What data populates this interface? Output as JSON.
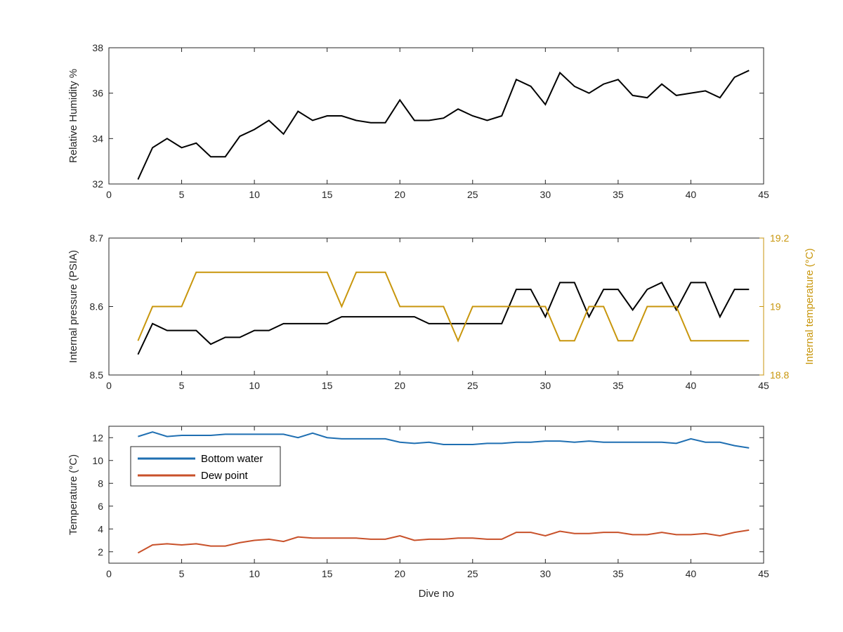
{
  "chart_data": [
    {
      "type": "line",
      "ylabel": "Relative Humidity %",
      "xlim": [
        0,
        45
      ],
      "ylim": [
        32,
        38
      ],
      "xticks": [
        "0",
        "5",
        "10",
        "15",
        "20",
        "25",
        "30",
        "35",
        "40",
        "45"
      ],
      "yticks": [
        "32",
        "34",
        "36",
        "38"
      ],
      "series": [
        {
          "color": "#000000",
          "x": [
            2,
            3,
            4,
            5,
            6,
            7,
            8,
            9,
            10,
            11,
            12,
            13,
            14,
            15,
            16,
            17,
            18,
            19,
            20,
            21,
            22,
            23,
            24,
            25,
            26,
            27,
            28,
            29,
            30,
            31,
            32,
            33,
            34,
            35,
            36,
            37,
            38,
            39,
            40,
            41,
            42,
            43,
            44
          ],
          "y": [
            32.2,
            33.6,
            34.0,
            33.6,
            33.8,
            33.2,
            33.2,
            34.1,
            34.4,
            34.8,
            34.2,
            35.2,
            34.8,
            35.0,
            35.0,
            34.8,
            34.7,
            34.7,
            35.7,
            34.8,
            34.8,
            34.9,
            35.3,
            35.0,
            34.8,
            35.0,
            36.6,
            36.3,
            35.5,
            36.9,
            36.3,
            36.0,
            36.4,
            36.6,
            35.9,
            35.8,
            36.4,
            35.9,
            36.0,
            36.1,
            35.8,
            36.7,
            37.0
          ]
        }
      ]
    },
    {
      "type": "line",
      "ylabel": "Internal pressure (PSIA)",
      "y2label": "Internal temperature (°C)",
      "xlim": [
        0,
        45
      ],
      "ylim": [
        8.5,
        8.7
      ],
      "y2lim": [
        18.8,
        19.2
      ],
      "xticks": [
        "0",
        "5",
        "10",
        "15",
        "20",
        "25",
        "30",
        "35",
        "40",
        "45"
      ],
      "yticks": [
        "8.5",
        "8.6",
        "8.7"
      ],
      "y2ticks": [
        "18.8",
        "19",
        "19.2"
      ],
      "y2color": "#c8960c",
      "series": [
        {
          "axis": "left",
          "color": "#000000",
          "x": [
            2,
            3,
            4,
            5,
            6,
            7,
            8,
            9,
            10,
            11,
            12,
            13,
            14,
            15,
            16,
            17,
            18,
            19,
            20,
            21,
            22,
            23,
            24,
            25,
            26,
            27,
            28,
            29,
            30,
            31,
            32,
            33,
            34,
            35,
            36,
            37,
            38,
            39,
            40,
            41,
            42,
            43,
            44
          ],
          "y": [
            8.53,
            8.575,
            8.565,
            8.565,
            8.565,
            8.545,
            8.555,
            8.555,
            8.565,
            8.565,
            8.575,
            8.575,
            8.575,
            8.575,
            8.585,
            8.585,
            8.585,
            8.585,
            8.585,
            8.585,
            8.575,
            8.575,
            8.575,
            8.575,
            8.575,
            8.575,
            8.625,
            8.625,
            8.585,
            8.635,
            8.635,
            8.585,
            8.625,
            8.625,
            8.595,
            8.625,
            8.635,
            8.595,
            8.635,
            8.635,
            8.585,
            8.625,
            8.625
          ]
        },
        {
          "axis": "right",
          "color": "#c8960c",
          "x": [
            2,
            3,
            4,
            5,
            6,
            7,
            8,
            9,
            10,
            11,
            12,
            13,
            14,
            15,
            16,
            17,
            18,
            19,
            20,
            21,
            22,
            23,
            24,
            25,
            26,
            27,
            28,
            29,
            30,
            31,
            32,
            33,
            34,
            35,
            36,
            37,
            38,
            39,
            40,
            41,
            42,
            43,
            44
          ],
          "y": [
            18.9,
            19.0,
            19.0,
            19.0,
            19.1,
            19.1,
            19.1,
            19.1,
            19.1,
            19.1,
            19.1,
            19.1,
            19.1,
            19.1,
            19.0,
            19.1,
            19.1,
            19.1,
            19.0,
            19.0,
            19.0,
            19.0,
            18.9,
            19.0,
            19.0,
            19.0,
            19.0,
            19.0,
            19.0,
            18.9,
            18.9,
            19.0,
            19.0,
            18.9,
            18.9,
            19.0,
            19.0,
            19.0,
            18.9,
            18.9,
            18.9,
            18.9,
            18.9
          ]
        }
      ]
    },
    {
      "type": "line",
      "xlabel": "Dive no",
      "ylabel": "Temperature (°C)",
      "xlim": [
        0,
        45
      ],
      "ylim": [
        1,
        13
      ],
      "xticks": [
        "0",
        "5",
        "10",
        "15",
        "20",
        "25",
        "30",
        "35",
        "40",
        "45"
      ],
      "yticks": [
        "2",
        "4",
        "6",
        "8",
        "10",
        "12"
      ],
      "legend": "top-left",
      "series": [
        {
          "name": "Bottom water",
          "color": "#1f6fb2",
          "x": [
            2,
            3,
            4,
            5,
            6,
            7,
            8,
            9,
            10,
            11,
            12,
            13,
            14,
            15,
            16,
            17,
            18,
            19,
            20,
            21,
            22,
            23,
            24,
            25,
            26,
            27,
            28,
            29,
            30,
            31,
            32,
            33,
            34,
            35,
            36,
            37,
            38,
            39,
            40,
            41,
            42,
            43,
            44
          ],
          "y": [
            12.1,
            12.5,
            12.1,
            12.2,
            12.2,
            12.2,
            12.3,
            12.3,
            12.3,
            12.3,
            12.3,
            12.0,
            12.4,
            12.0,
            11.9,
            11.9,
            11.9,
            11.9,
            11.6,
            11.5,
            11.6,
            11.4,
            11.4,
            11.4,
            11.5,
            11.5,
            11.6,
            11.6,
            11.7,
            11.7,
            11.6,
            11.7,
            11.6,
            11.6,
            11.6,
            11.6,
            11.6,
            11.5,
            11.9,
            11.6,
            11.6,
            11.3,
            11.1
          ]
        },
        {
          "name": "Dew point",
          "color": "#c8512a",
          "x": [
            2,
            3,
            4,
            5,
            6,
            7,
            8,
            9,
            10,
            11,
            12,
            13,
            14,
            15,
            16,
            17,
            18,
            19,
            20,
            21,
            22,
            23,
            24,
            25,
            26,
            27,
            28,
            29,
            30,
            31,
            32,
            33,
            34,
            35,
            36,
            37,
            38,
            39,
            40,
            41,
            42,
            43,
            44
          ],
          "y": [
            1.9,
            2.6,
            2.7,
            2.6,
            2.7,
            2.5,
            2.5,
            2.8,
            3.0,
            3.1,
            2.9,
            3.3,
            3.2,
            3.2,
            3.2,
            3.2,
            3.1,
            3.1,
            3.4,
            3.0,
            3.1,
            3.1,
            3.2,
            3.2,
            3.1,
            3.1,
            3.7,
            3.7,
            3.4,
            3.8,
            3.6,
            3.6,
            3.7,
            3.7,
            3.5,
            3.5,
            3.7,
            3.5,
            3.5,
            3.6,
            3.4,
            3.7,
            3.9
          ]
        }
      ]
    }
  ]
}
